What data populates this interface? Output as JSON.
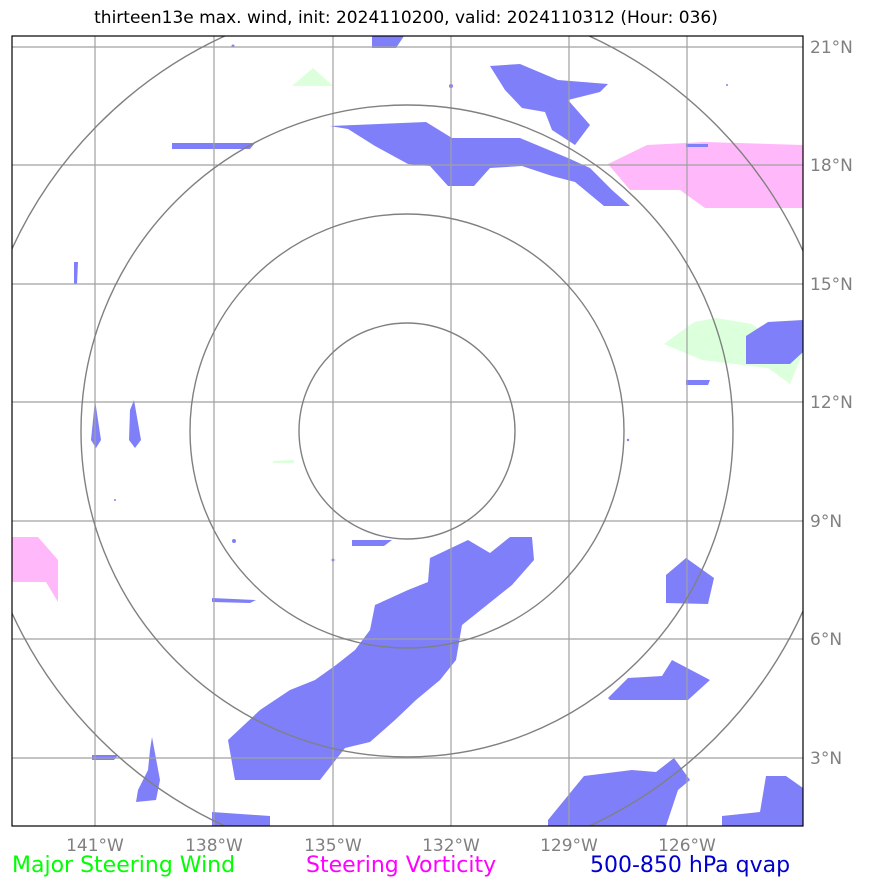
{
  "title": "thirteen13e max. wind, init: 2024110200, valid: 2024110312 (Hour: 036)",
  "lon_ticks": [
    "141°W",
    "138°W",
    "135°W",
    "132°W",
    "129°W",
    "126°W"
  ],
  "lat_ticks": [
    "21°N",
    "18°N",
    "15°N",
    "12°N",
    "9°N",
    "6°N",
    "3°N"
  ],
  "legend": {
    "wind": {
      "label": "Major Steering Wind",
      "color": "#00ff00"
    },
    "vorticity": {
      "label": "Steering Vorticity",
      "color": "#ff00ff"
    },
    "qvap": {
      "label": "500-850 hPa qvap",
      "color": "#0000cc"
    }
  },
  "colors": {
    "qvap_fill": "#7f7ffa",
    "vorticity_fill": "#ffb8fa",
    "wind_fill": "#dcffdc",
    "grid": "#a0a0a0",
    "range_rings": "#808080"
  }
}
